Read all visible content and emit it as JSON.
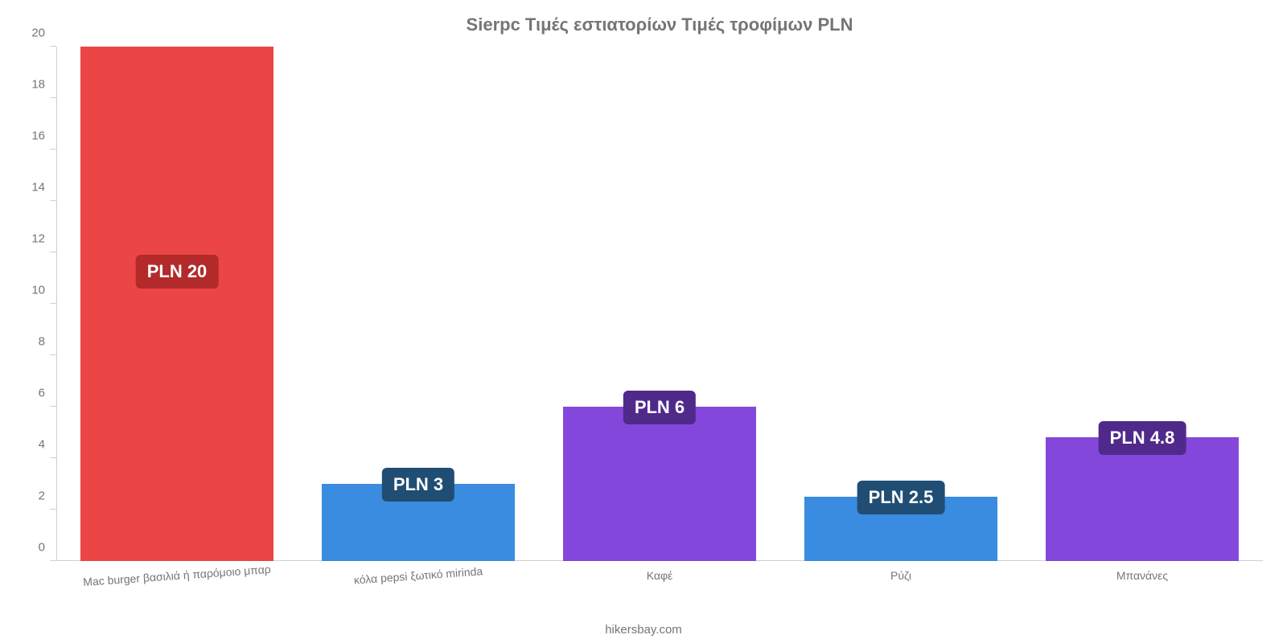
{
  "chart": {
    "type": "bar",
    "title": "Sierpc Τιμές εστιατορίων Τιμές τροφίμων PLN",
    "title_fontsize": 22,
    "title_color": "#757575",
    "background_color": "#ffffff",
    "axis_color": "#d0d0d0",
    "tick_label_color": "#757575",
    "tick_label_fontsize": 15,
    "bar_width_pct": 80,
    "ylim": [
      0,
      20
    ],
    "yticks": [
      0,
      2,
      4,
      6,
      8,
      10,
      12,
      14,
      16,
      18,
      20
    ],
    "categories": [
      "Mac burger βασιλιά ή παρόμοιο μπαρ",
      "κόλα pepsi ξωτικό mirinda",
      "Καφέ",
      "Ρύζι",
      "Μπανάνες"
    ],
    "values": [
      20,
      3,
      6,
      2.5,
      4.8
    ],
    "value_labels": [
      "PLN 20",
      "PLN 3",
      "PLN 6",
      "PLN 2.5",
      "PLN 4.8"
    ],
    "bar_colors": [
      "#eb3b3b",
      "#2e86de",
      "#7c3ed9",
      "#2e86de",
      "#7c3ed9"
    ],
    "badge_colors": [
      "#b22a2a",
      "#204d74",
      "#4f2a8a",
      "#204d74",
      "#4f2a8a"
    ],
    "badge_text_color": "#ffffff",
    "badge_fontsize": 22,
    "x_label_rotate_first_two": true,
    "footer": "hikersbay.com"
  }
}
